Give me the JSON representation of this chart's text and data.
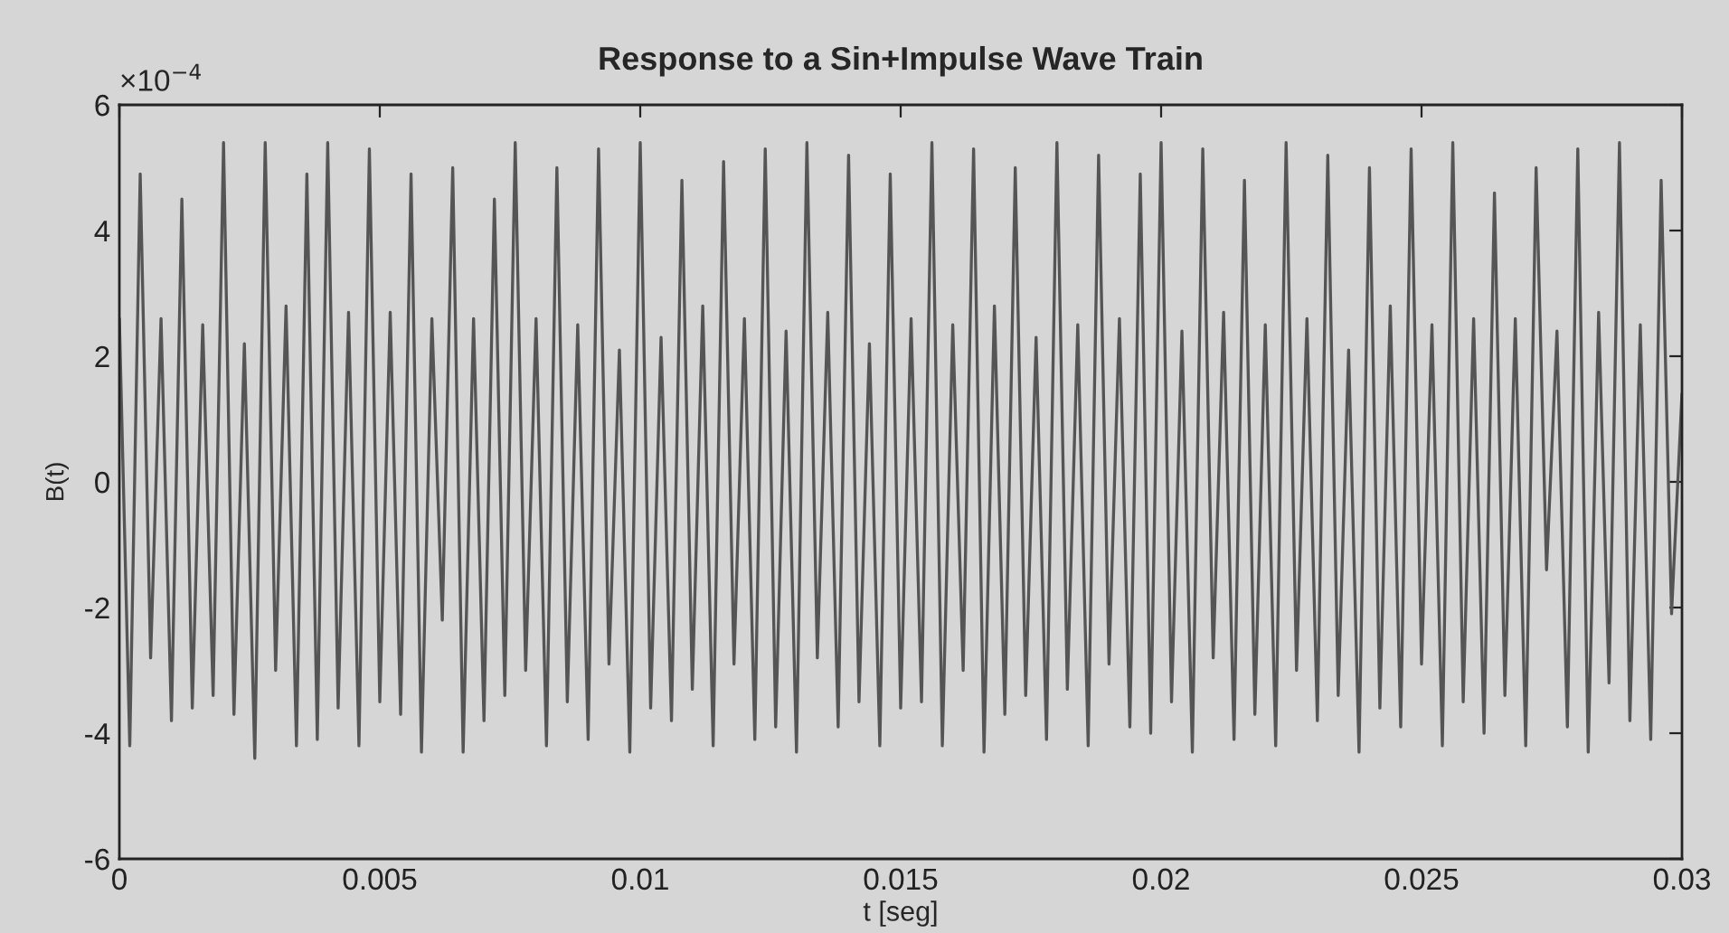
{
  "chart_data": {
    "type": "line",
    "title": "Response to a Sin+Impulse Wave Train",
    "xlabel": "t [seg]",
    "ylabel": "B(t)",
    "annotations": [
      "×10$^{−4}$"
    ],
    "xlim": [
      0,
      0.03
    ],
    "xticks": [
      0,
      0.005,
      0.01,
      0.015,
      0.02,
      0.025,
      0.03
    ],
    "ylim": [
      -6,
      6
    ],
    "yticks": [
      -6,
      -4,
      -2,
      0,
      2,
      4,
      6
    ],
    "grid": false,
    "marker": "none",
    "line_style": "solid",
    "series": [
      {
        "color": "#555555",
        "x": [
          0,
          0.0002,
          0.0004,
          0.0006,
          0.0008,
          0.001,
          0.0012,
          0.0014,
          0.0016,
          0.0018,
          0.002,
          0.0022,
          0.0024,
          0.0026,
          0.0028,
          0.003,
          0.0032,
          0.0034,
          0.0036,
          0.0038,
          0.004,
          0.0042,
          0.0044,
          0.0046,
          0.0048,
          0.005,
          0.0052,
          0.0054,
          0.0056,
          0.0058,
          0.006,
          0.0062,
          0.0064,
          0.0066,
          0.0068,
          0.007,
          0.0072,
          0.0074,
          0.0076,
          0.0078,
          0.008,
          0.0082,
          0.0084,
          0.0086,
          0.0088,
          0.009,
          0.0092,
          0.0094,
          0.0096,
          0.0098,
          0.01,
          0.0102,
          0.0104,
          0.0106,
          0.0108,
          0.011,
          0.0112,
          0.0114,
          0.0116,
          0.0118,
          0.012,
          0.0122,
          0.0124,
          0.0126,
          0.0128,
          0.013,
          0.0132,
          0.0134,
          0.0136,
          0.0138,
          0.014,
          0.0142,
          0.0144,
          0.0146,
          0.0148,
          0.015,
          0.0152,
          0.0154,
          0.0156,
          0.0158,
          0.016,
          0.0162,
          0.0164,
          0.0166,
          0.0168,
          0.017,
          0.0172,
          0.0174,
          0.0176,
          0.0178,
          0.018,
          0.0182,
          0.0184,
          0.0186,
          0.0188,
          0.019,
          0.0192,
          0.0194,
          0.0196,
          0.0198,
          0.02,
          0.0202,
          0.0204,
          0.0206,
          0.0208,
          0.021,
          0.0212,
          0.0214,
          0.0216,
          0.0218,
          0.022,
          0.0222,
          0.0224,
          0.0226,
          0.0228,
          0.023,
          0.0232,
          0.0234,
          0.0236,
          0.0238,
          0.024,
          0.0242,
          0.0244,
          0.0246,
          0.0248,
          0.025,
          0.0252,
          0.0254,
          0.0256,
          0.0258,
          0.026,
          0.0262,
          0.0264,
          0.0266,
          0.0268,
          0.027,
          0.0272,
          0.0274,
          0.0276,
          0.0278,
          0.028,
          0.0282,
          0.0284,
          0.0286,
          0.0288,
          0.029,
          0.0292,
          0.0294,
          0.0296,
          0.0298,
          0.03
        ],
        "values": [
          2.6,
          -4.2,
          4.9,
          -2.8,
          2.6,
          -3.8,
          4.5,
          -3.6,
          2.5,
          -3.4,
          5.4,
          -3.7,
          2.2,
          -4.4,
          5.4,
          -3.0,
          2.8,
          -4.2,
          4.9,
          -4.1,
          5.4,
          -3.6,
          2.7,
          -4.2,
          5.3,
          -3.5,
          2.7,
          -3.7,
          4.9,
          -4.3,
          2.6,
          -2.2,
          5.0,
          -4.3,
          2.6,
          -3.8,
          4.5,
          -3.4,
          5.4,
          -3.0,
          2.6,
          -4.2,
          5.0,
          -3.5,
          2.5,
          -4.1,
          5.3,
          -2.9,
          2.1,
          -4.3,
          5.4,
          -3.6,
          2.3,
          -3.8,
          4.8,
          -3.3,
          2.8,
          -4.2,
          5.1,
          -2.9,
          2.6,
          -4.1,
          5.3,
          -3.9,
          2.4,
          -4.3,
          5.4,
          -2.8,
          2.7,
          -3.9,
          5.2,
          -3.5,
          2.2,
          -4.2,
          4.9,
          -3.6,
          2.6,
          -3.5,
          5.4,
          -4.2,
          2.5,
          -3.0,
          5.3,
          -4.3,
          2.8,
          -3.7,
          5.0,
          -3.4,
          2.3,
          -4.1,
          5.4,
          -3.3,
          2.5,
          -4.2,
          5.2,
          -2.9,
          2.6,
          -3.9,
          4.9,
          -4.0,
          5.4,
          -3.5,
          2.4,
          -4.3,
          5.3,
          -2.8,
          2.7,
          -4.1,
          4.8,
          -3.7,
          2.5,
          -4.2,
          5.4,
          -3.0,
          2.6,
          -3.8,
          5.2,
          -3.4,
          2.1,
          -4.3,
          5.0,
          -3.6,
          2.8,
          -3.9,
          5.3,
          -2.9,
          2.5,
          -4.2,
          5.4,
          -3.5,
          2.6,
          -4.0,
          4.6,
          -3.4,
          2.6,
          -4.2,
          5.0,
          -1.4,
          2.4,
          -3.9,
          5.3,
          -4.3,
          2.7,
          -3.2,
          5.4,
          -3.8,
          2.5,
          -4.1,
          4.8,
          -2.1,
          1.4
        ]
      }
    ]
  }
}
